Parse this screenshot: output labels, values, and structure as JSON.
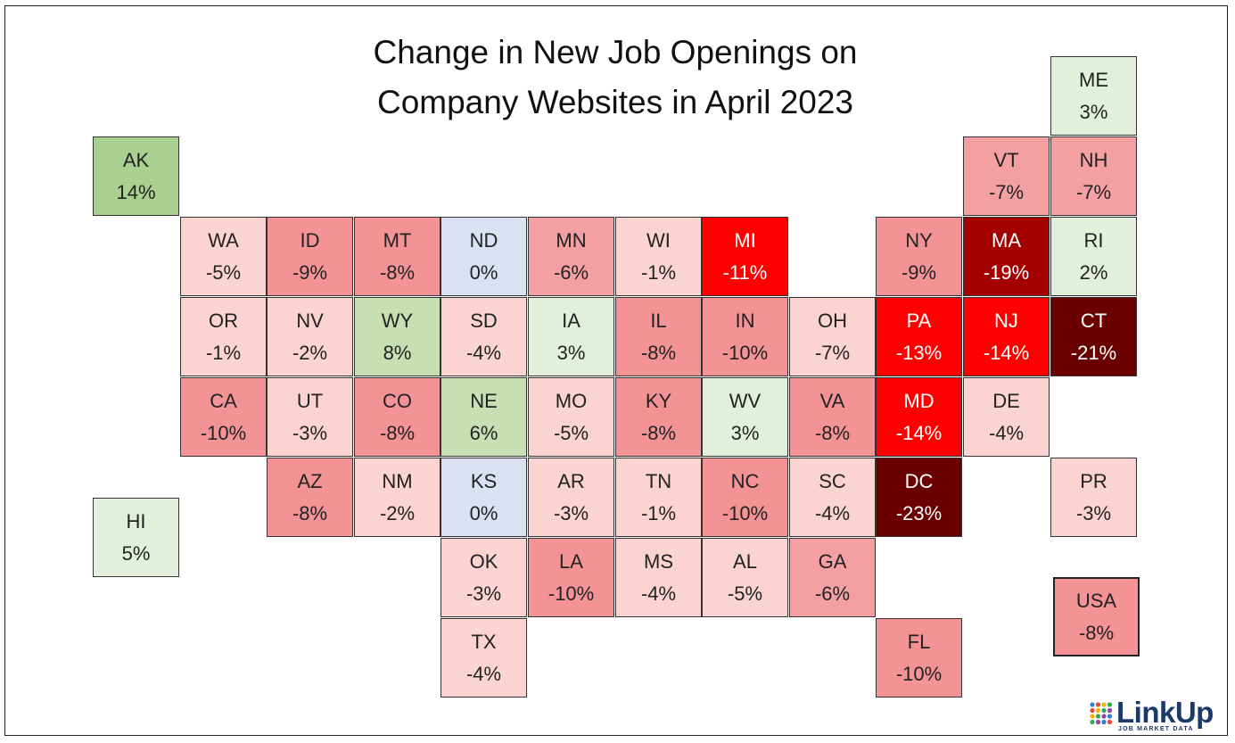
{
  "chart_data": {
    "type": "tile-map",
    "title_line1": "Change in New Job Openings on",
    "title_line2": "Company Websites in April 2023",
    "unit": "%",
    "tiles": [
      {
        "state": "ME",
        "value": 3,
        "label": "3%",
        "row": 0,
        "col": 11,
        "color": "#e2efda"
      },
      {
        "state": "AK",
        "value": 14,
        "label": "14%",
        "row": 1,
        "col": 0,
        "color": "#a9d08e"
      },
      {
        "state": "VT",
        "value": -7,
        "label": "-7%",
        "row": 1,
        "col": 10,
        "color": "#f4a0a2"
      },
      {
        "state": "NH",
        "value": -7,
        "label": "-7%",
        "row": 1,
        "col": 11,
        "color": "#f4a0a2"
      },
      {
        "state": "WA",
        "value": -5,
        "label": "-5%",
        "row": 2,
        "col": 1,
        "color": "#fbd3d0"
      },
      {
        "state": "ID",
        "value": -9,
        "label": "-9%",
        "row": 2,
        "col": 2,
        "color": "#f49396"
      },
      {
        "state": "MT",
        "value": -8,
        "label": "-8%",
        "row": 2,
        "col": 3,
        "color": "#f49396"
      },
      {
        "state": "ND",
        "value": 0,
        "label": "0%",
        "row": 2,
        "col": 4,
        "color": "#d9e1f2"
      },
      {
        "state": "MN",
        "value": -6,
        "label": "-6%",
        "row": 2,
        "col": 5,
        "color": "#f4a0a2"
      },
      {
        "state": "WI",
        "value": -1,
        "label": "-1%",
        "row": 2,
        "col": 6,
        "color": "#fbd3d0"
      },
      {
        "state": "MI",
        "value": -11,
        "label": "-11%",
        "row": 2,
        "col": 7,
        "color": "#ff0000",
        "text": "#ffffff"
      },
      {
        "state": "NY",
        "value": -9,
        "label": "-9%",
        "row": 2,
        "col": 9,
        "color": "#f49396"
      },
      {
        "state": "MA",
        "value": -19,
        "label": "-19%",
        "row": 2,
        "col": 10,
        "color": "#a50000",
        "text": "#ffffff"
      },
      {
        "state": "RI",
        "value": 2,
        "label": "2%",
        "row": 2,
        "col": 11,
        "color": "#e2efda"
      },
      {
        "state": "OR",
        "value": -1,
        "label": "-1%",
        "row": 3,
        "col": 1,
        "color": "#fbd3d0"
      },
      {
        "state": "NV",
        "value": -2,
        "label": "-2%",
        "row": 3,
        "col": 2,
        "color": "#fbd3d0"
      },
      {
        "state": "WY",
        "value": 8,
        "label": "8%",
        "row": 3,
        "col": 3,
        "color": "#c6e0b4"
      },
      {
        "state": "SD",
        "value": -4,
        "label": "-4%",
        "row": 3,
        "col": 4,
        "color": "#fbd3d0"
      },
      {
        "state": "IA",
        "value": 3,
        "label": "3%",
        "row": 3,
        "col": 5,
        "color": "#e2efda"
      },
      {
        "state": "IL",
        "value": -8,
        "label": "-8%",
        "row": 3,
        "col": 6,
        "color": "#f49396"
      },
      {
        "state": "IN",
        "value": -10,
        "label": "-10%",
        "row": 3,
        "col": 7,
        "color": "#f49396"
      },
      {
        "state": "OH",
        "value": -7,
        "label": "-7%",
        "row": 3,
        "col": 8,
        "color": "#fbd3d0"
      },
      {
        "state": "PA",
        "value": -13,
        "label": "-13%",
        "row": 3,
        "col": 9,
        "color": "#ff0000",
        "text": "#ffffff"
      },
      {
        "state": "NJ",
        "value": -14,
        "label": "-14%",
        "row": 3,
        "col": 10,
        "color": "#ff0000",
        "text": "#ffffff"
      },
      {
        "state": "CT",
        "value": -21,
        "label": "-21%",
        "row": 3,
        "col": 11,
        "color": "#6b0000",
        "text": "#ffffff"
      },
      {
        "state": "CA",
        "value": -10,
        "label": "-10%",
        "row": 4,
        "col": 1,
        "color": "#f49396"
      },
      {
        "state": "UT",
        "value": -3,
        "label": "-3%",
        "row": 4,
        "col": 2,
        "color": "#fbd3d0"
      },
      {
        "state": "CO",
        "value": -8,
        "label": "-8%",
        "row": 4,
        "col": 3,
        "color": "#f49396"
      },
      {
        "state": "NE",
        "value": 6,
        "label": "6%",
        "row": 4,
        "col": 4,
        "color": "#c6e0b4"
      },
      {
        "state": "MO",
        "value": -5,
        "label": "-5%",
        "row": 4,
        "col": 5,
        "color": "#fbd3d0"
      },
      {
        "state": "KY",
        "value": -8,
        "label": "-8%",
        "row": 4,
        "col": 6,
        "color": "#f49396"
      },
      {
        "state": "WV",
        "value": 3,
        "label": "3%",
        "row": 4,
        "col": 7,
        "color": "#e2efda"
      },
      {
        "state": "VA",
        "value": -8,
        "label": "-8%",
        "row": 4,
        "col": 8,
        "color": "#f49396"
      },
      {
        "state": "MD",
        "value": -14,
        "label": "-14%",
        "row": 4,
        "col": 9,
        "color": "#ff0000",
        "text": "#ffffff"
      },
      {
        "state": "DE",
        "value": -4,
        "label": "-4%",
        "row": 4,
        "col": 10,
        "color": "#fbd3d0"
      },
      {
        "state": "AZ",
        "value": -8,
        "label": "-8%",
        "row": 5,
        "col": 2,
        "color": "#f49396"
      },
      {
        "state": "NM",
        "value": -2,
        "label": "-2%",
        "row": 5,
        "col": 3,
        "color": "#fbd3d0"
      },
      {
        "state": "KS",
        "value": 0,
        "label": "0%",
        "row": 5,
        "col": 4,
        "color": "#d9e1f2"
      },
      {
        "state": "AR",
        "value": -3,
        "label": "-3%",
        "row": 5,
        "col": 5,
        "color": "#fbd3d0"
      },
      {
        "state": "TN",
        "value": -1,
        "label": "-1%",
        "row": 5,
        "col": 6,
        "color": "#fbd3d0"
      },
      {
        "state": "NC",
        "value": -10,
        "label": "-10%",
        "row": 5,
        "col": 7,
        "color": "#f49396"
      },
      {
        "state": "SC",
        "value": -4,
        "label": "-4%",
        "row": 5,
        "col": 8,
        "color": "#fbd3d0"
      },
      {
        "state": "DC",
        "value": -23,
        "label": "-23%",
        "row": 5,
        "col": 9,
        "color": "#6b0000",
        "text": "#ffffff"
      },
      {
        "state": "PR",
        "value": -3,
        "label": "-3%",
        "row": 5,
        "col": 11,
        "color": "#fbd3d0"
      },
      {
        "state": "HI",
        "value": 5,
        "label": "5%",
        "row": 5.5,
        "col": 0,
        "color": "#e2efda"
      },
      {
        "state": "OK",
        "value": -3,
        "label": "-3%",
        "row": 6,
        "col": 4,
        "color": "#fbd3d0"
      },
      {
        "state": "LA",
        "value": -10,
        "label": "-10%",
        "row": 6,
        "col": 5,
        "color": "#f49396"
      },
      {
        "state": "MS",
        "value": -4,
        "label": "-4%",
        "row": 6,
        "col": 6,
        "color": "#fbd3d0"
      },
      {
        "state": "AL",
        "value": -5,
        "label": "-5%",
        "row": 6,
        "col": 7,
        "color": "#fbd3d0"
      },
      {
        "state": "GA",
        "value": -6,
        "label": "-6%",
        "row": 6,
        "col": 8,
        "color": "#f4a0a2"
      },
      {
        "state": "USA",
        "value": -8,
        "label": "-8%",
        "row": 6.5,
        "col": 11,
        "color": "#f49396",
        "usa": true
      },
      {
        "state": "TX",
        "value": -4,
        "label": "-4%",
        "row": 7,
        "col": 4,
        "color": "#fbd3d0"
      },
      {
        "state": "FL",
        "value": -10,
        "label": "-10%",
        "row": 7,
        "col": 9,
        "color": "#f49396"
      }
    ]
  },
  "logo": {
    "brand": "LinkUp",
    "tagline": "JOB MARKET DATA",
    "dot_colors": [
      "#2f80d1",
      "#e8493f",
      "#f4b400",
      "#35a853",
      "#8e44ad"
    ]
  }
}
